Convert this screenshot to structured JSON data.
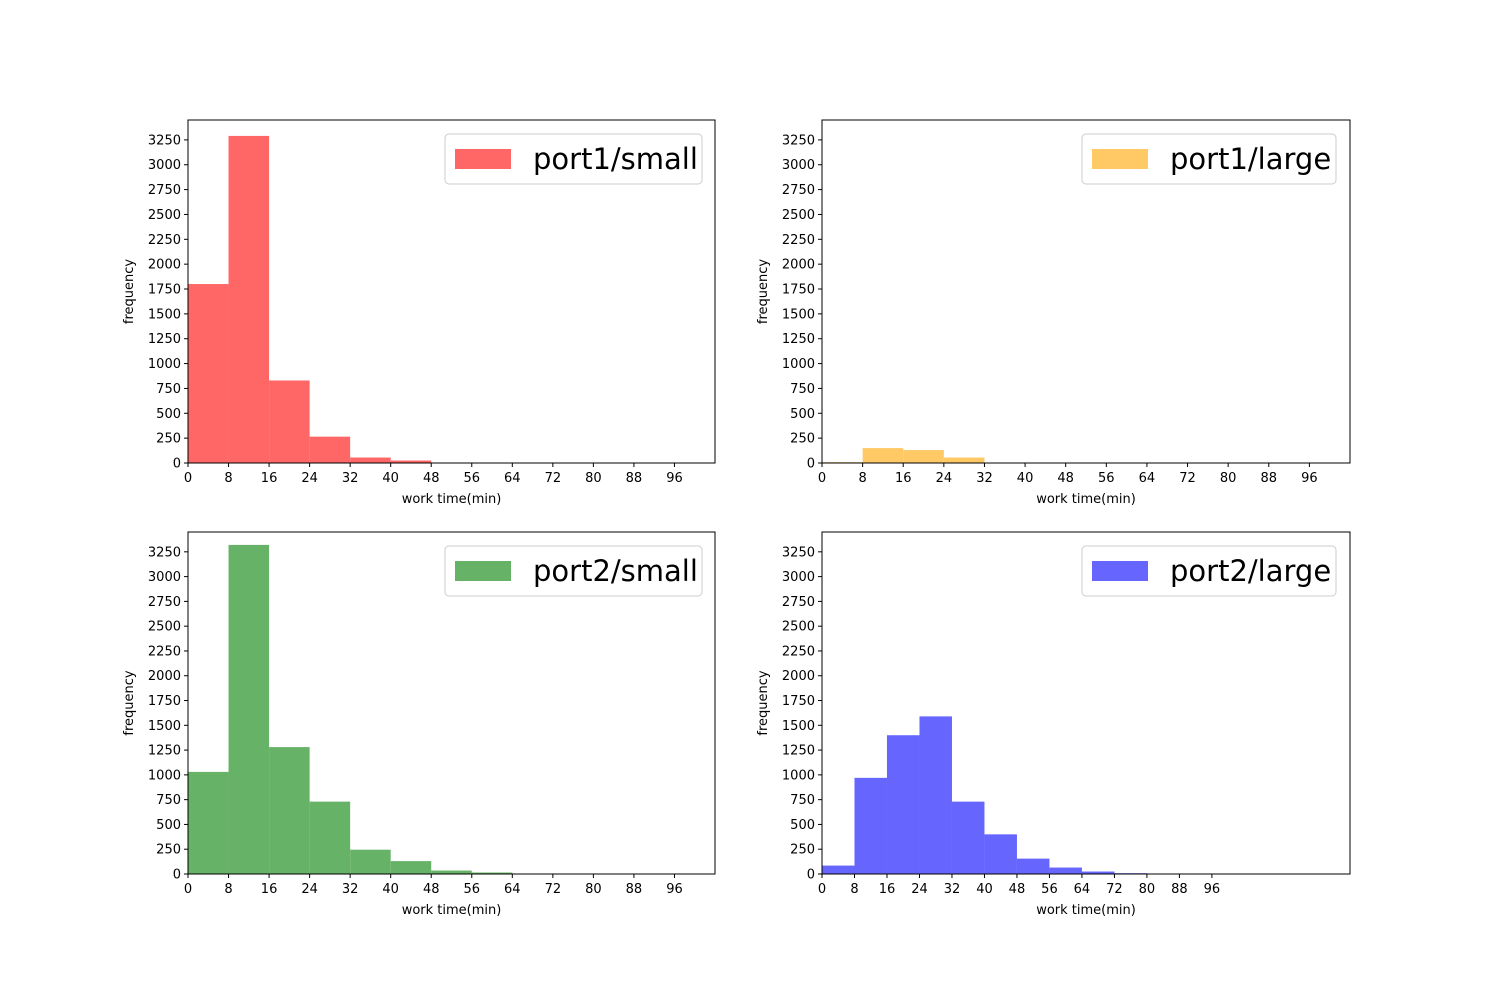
{
  "chart_data": [
    {
      "type": "bar",
      "subtype": "histogram",
      "bin_width": 8,
      "bin_starts": [
        0,
        8,
        16,
        24,
        32,
        40
      ],
      "series": [
        {
          "name": "port1/small",
          "values": [
            1800,
            3290,
            830,
            265,
            55,
            25
          ]
        }
      ],
      "color": "#ff6666",
      "xlabel": "work time(min)",
      "ylabel": "frequency",
      "xlim": [
        0,
        104
      ],
      "ylim": [
        0,
        3450
      ],
      "xticks": [
        0,
        8,
        16,
        24,
        32,
        40,
        48,
        56,
        64,
        72,
        80,
        88,
        96
      ],
      "yticks": [
        0,
        250,
        500,
        750,
        1000,
        1250,
        1500,
        1750,
        2000,
        2250,
        2500,
        2750,
        3000,
        3250
      ],
      "legend": "top-right",
      "grid": false
    },
    {
      "type": "bar",
      "subtype": "histogram",
      "bin_width": 8,
      "bin_starts": [
        0,
        8,
        16,
        24
      ],
      "series": [
        {
          "name": "port1/large",
          "values": [
            8,
            150,
            130,
            55
          ]
        }
      ],
      "color": "#ffc966",
      "xlabel": "work time(min)",
      "ylabel": "frequency",
      "xlim": [
        0,
        104
      ],
      "ylim": [
        0,
        3450
      ],
      "xticks": [
        0,
        8,
        16,
        24,
        32,
        40,
        48,
        56,
        64,
        72,
        80,
        88,
        96
      ],
      "yticks": [
        0,
        250,
        500,
        750,
        1000,
        1250,
        1500,
        1750,
        2000,
        2250,
        2500,
        2750,
        3000,
        3250
      ],
      "legend": "top-right",
      "grid": false
    },
    {
      "type": "bar",
      "subtype": "histogram",
      "bin_width": 8,
      "bin_starts": [
        0,
        8,
        16,
        24,
        32,
        40,
        48,
        56
      ],
      "series": [
        {
          "name": "port2/small",
          "values": [
            1030,
            3320,
            1280,
            730,
            245,
            130,
            35,
            15
          ]
        }
      ],
      "color": "#66b266",
      "xlabel": "work time(min)",
      "ylabel": "frequency",
      "xlim": [
        0,
        104
      ],
      "ylim": [
        0,
        3450
      ],
      "xticks": [
        0,
        8,
        16,
        24,
        32,
        40,
        48,
        56,
        64,
        72,
        80,
        88,
        96
      ],
      "yticks": [
        0,
        250,
        500,
        750,
        1000,
        1250,
        1500,
        1750,
        2000,
        2250,
        2500,
        2750,
        3000,
        3250
      ],
      "legend": "top-right",
      "grid": false
    },
    {
      "type": "bar",
      "subtype": "histogram",
      "bin_width": 8,
      "bin_starts": [
        0,
        8,
        16,
        24,
        32,
        40,
        48,
        56,
        64,
        72
      ],
      "series": [
        {
          "name": "port2/large",
          "values": [
            85,
            970,
            1400,
            1590,
            730,
            400,
            155,
            65,
            25,
            8
          ]
        }
      ],
      "color": "#6666ff",
      "xlabel": "work time(min)",
      "ylabel": "frequency",
      "xlim": [
        0,
        130
      ],
      "ylim": [
        0,
        3450
      ],
      "xticks": [
        0,
        8,
        16,
        24,
        32,
        40,
        48,
        56,
        64,
        72,
        80,
        88,
        96
      ],
      "yticks": [
        0,
        250,
        500,
        750,
        1000,
        1250,
        1500,
        1750,
        2000,
        2250,
        2500,
        2750,
        3000,
        3250
      ],
      "legend": "top-right",
      "grid": false
    }
  ]
}
